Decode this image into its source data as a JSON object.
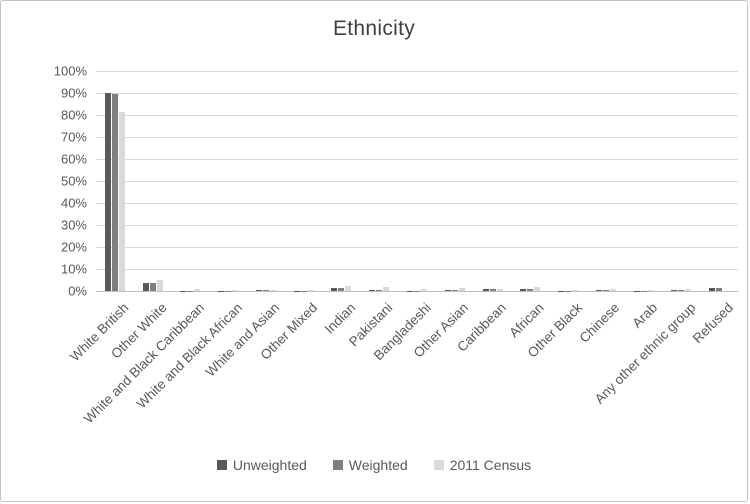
{
  "title": "Ethnicity",
  "chart_data": {
    "type": "bar",
    "title": "Ethnicity",
    "categories": [
      "White British",
      "Other White",
      "White and Black Caribbean",
      "White and Black African",
      "White and Asian",
      "Other Mixed",
      "Indian",
      "Pakistani",
      "Bangladeshi",
      "Other Asian",
      "Caribbean",
      "African",
      "Other Black",
      "Chinese",
      "Arab",
      "Any other ethnic group",
      "Refused"
    ],
    "series": [
      {
        "name": "Unweighted",
        "color": "#595959",
        "values": [
          90,
          3.5,
          0.2,
          0.1,
          0.4,
          0.2,
          1.5,
          0.5,
          0.1,
          0.3,
          1.0,
          1.0,
          0.1,
          0.4,
          0.1,
          0.6,
          1.5
        ]
      },
      {
        "name": "Weighted",
        "color": "#7f7f7f",
        "values": [
          89.5,
          3.5,
          0.2,
          0.1,
          0.4,
          0.2,
          1.5,
          0.5,
          0.1,
          0.3,
          1.0,
          1.0,
          0.1,
          0.4,
          0.1,
          0.6,
          1.5
        ]
      },
      {
        "name": "2011 Census",
        "color": "#d9d9d9",
        "values": [
          81.5,
          5.0,
          0.8,
          0.3,
          0.6,
          0.5,
          2.5,
          2.0,
          0.8,
          1.5,
          1.0,
          2.0,
          0.5,
          0.7,
          0.4,
          1.0,
          0
        ]
      }
    ],
    "xlabel": "",
    "ylabel": "",
    "ylim": [
      0,
      100
    ],
    "ytick_step": 10,
    "ytick_format": "percent",
    "grid": true,
    "legend_position": "bottom"
  },
  "colors": {
    "grid": "#d9d9d9",
    "baseline": "#bfbfbf",
    "axis_text": "#595959",
    "title_text": "#404040",
    "frame_border": "#c3c3c3"
  }
}
